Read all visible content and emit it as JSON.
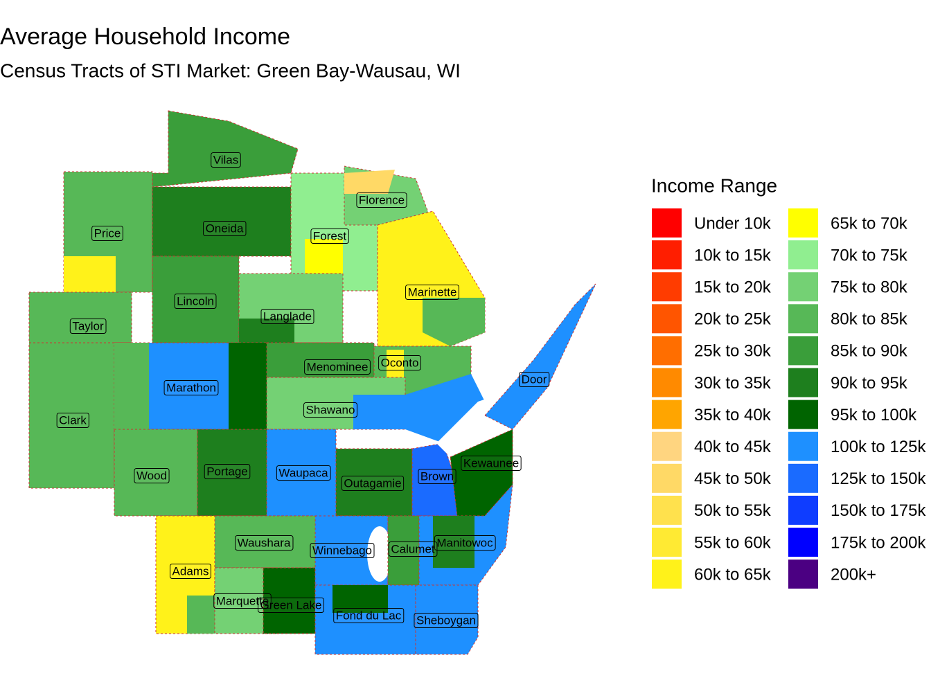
{
  "title": "Average Household Income",
  "subtitle": "Census Tracts of STI Market: Green Bay-Wausau, WI",
  "legend": {
    "title": "Income Range",
    "items": [
      {
        "label": "Under 10k",
        "color": "#ff0000"
      },
      {
        "label": "10k to 15k",
        "color": "#ff1e00"
      },
      {
        "label": "15k to 20k",
        "color": "#ff3c00"
      },
      {
        "label": "20k to 25k",
        "color": "#ff5500"
      },
      {
        "label": "25k to 30k",
        "color": "#ff6e00"
      },
      {
        "label": "30k to 35k",
        "color": "#ff8a00"
      },
      {
        "label": "35k to 40k",
        "color": "#ffa500"
      },
      {
        "label": "40k to 45k",
        "color": "#ffd580"
      },
      {
        "label": "45k to 50k",
        "color": "#ffd966"
      },
      {
        "label": "50k to 55k",
        "color": "#ffe14d"
      },
      {
        "label": "55k to 60k",
        "color": "#ffea33"
      },
      {
        "label": "60k to 65k",
        "color": "#fff21a"
      },
      {
        "label": "65k to 70k",
        "color": "#ffff00"
      },
      {
        "label": "70k to 75k",
        "color": "#90ee90"
      },
      {
        "label": "75k to 80k",
        "color": "#74d174"
      },
      {
        "label": "80k to 85k",
        "color": "#57b857"
      },
      {
        "label": "85k to 90k",
        "color": "#3a9e3a"
      },
      {
        "label": "90k to 95k",
        "color": "#1e7f1e"
      },
      {
        "label": "95k to 100k",
        "color": "#006400"
      },
      {
        "label": "100k to 125k",
        "color": "#1e90ff"
      },
      {
        "label": "125k to 150k",
        "color": "#1a6bff"
      },
      {
        "label": "150k to 175k",
        "color": "#0f3dff"
      },
      {
        "label": "175k to 200k",
        "color": "#0000ff"
      },
      {
        "label": "200k+",
        "color": "#4b0082"
      }
    ]
  },
  "counties": [
    "Vilas",
    "Florence",
    "Price",
    "Oneida",
    "Forest",
    "Marinette",
    "Lincoln",
    "Langlade",
    "Taylor",
    "Menominee",
    "Oconto",
    "Door",
    "Marathon",
    "Shawano",
    "Clark",
    "Kewaunee",
    "Wood",
    "Portage",
    "Waupaca",
    "Outagamie",
    "Brown",
    "Manitowoc",
    "Waushara",
    "Winnebago",
    "Calumet",
    "Adams",
    "Marquette",
    "Green Lake",
    "Fond du Lac",
    "Sheboygan"
  ]
}
